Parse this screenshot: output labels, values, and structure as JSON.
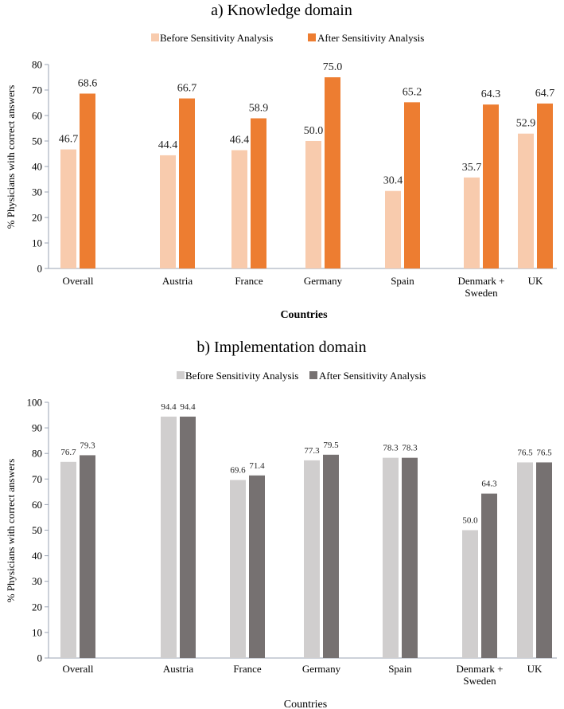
{
  "chart_data": [
    {
      "type": "bar",
      "title": "a) Knowledge domain",
      "categories": [
        "Overall",
        "Austria",
        "France",
        "Germany",
        "Spain",
        "Denmark + Sweden",
        "UK"
      ],
      "category_lines": [
        [
          "Overall"
        ],
        [
          "Austria"
        ],
        [
          "France"
        ],
        [
          "Germany"
        ],
        [
          "Spain"
        ],
        [
          "Denmark +",
          "Sweden"
        ],
        [
          "UK"
        ]
      ],
      "series": [
        {
          "name": "Before Sensitivity Analysis",
          "color": "#f8cbad",
          "values": [
            46.7,
            44.4,
            46.4,
            50.0,
            30.4,
            35.7,
            52.9
          ],
          "labels": [
            "46.7",
            "44.4",
            "46.4",
            "50.0",
            "30.4",
            "35.7",
            "52.9"
          ]
        },
        {
          "name": "After Sensitivity Analysis",
          "color": "#ed7d31",
          "values": [
            68.6,
            66.7,
            58.9,
            75.0,
            65.2,
            64.3,
            64.7
          ],
          "labels": [
            "68.6",
            "66.7",
            "58.9",
            "75.0",
            "65.2",
            "64.3",
            "64.7"
          ]
        }
      ],
      "xlabel": "Countries",
      "ylabel": "% Physicians with correct answers",
      "ylim": [
        0,
        80
      ],
      "yticks": [
        0,
        10,
        20,
        30,
        40,
        50,
        60,
        70,
        80
      ],
      "legend_position": "top-center",
      "grid": false
    },
    {
      "type": "bar",
      "title": "b) Implementation domain",
      "categories": [
        "Overall",
        "Austria",
        "France",
        "Germany",
        "Spain",
        "Denmark + Sweden",
        "UK"
      ],
      "category_lines": [
        [
          "Overall"
        ],
        [
          "Austria"
        ],
        [
          "France"
        ],
        [
          "Germany"
        ],
        [
          "Spain"
        ],
        [
          "Denmark +",
          "Sweden"
        ],
        [
          "UK"
        ]
      ],
      "series": [
        {
          "name": "Before Sensitivity Analysis",
          "color": "#d0cece",
          "values": [
            76.7,
            94.4,
            69.6,
            77.3,
            78.3,
            50.0,
            76.5
          ],
          "labels": [
            "76.7",
            "94.4",
            "69.6",
            "77.3",
            "78.3",
            "50.0",
            "76.5"
          ]
        },
        {
          "name": "After Sensitivity Analysis",
          "color": "#767171",
          "values": [
            79.3,
            94.4,
            71.4,
            79.5,
            78.3,
            64.3,
            76.5
          ],
          "labels": [
            "79.3",
            "94.4",
            "71.4",
            "79.5",
            "78.3",
            "64.3",
            "76.5"
          ]
        }
      ],
      "xlabel": "Countries",
      "ylabel": "% Physicians with correct answers",
      "ylim": [
        0,
        100
      ],
      "yticks": [
        0,
        10,
        20,
        30,
        40,
        50,
        60,
        70,
        80,
        90,
        100
      ],
      "legend_position": "top-center",
      "grid": false
    }
  ]
}
